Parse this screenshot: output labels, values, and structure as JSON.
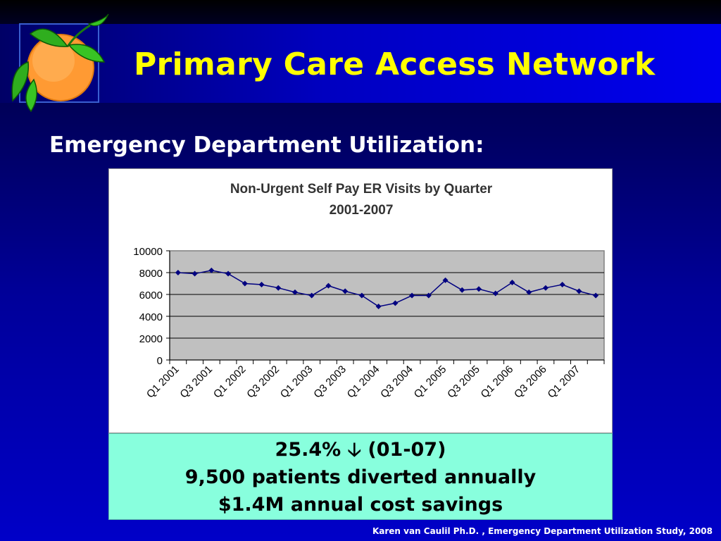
{
  "header": {
    "title": "Primary Care Access Network"
  },
  "section": {
    "subtitle": "Emergency Department Utilization:"
  },
  "chart_data": {
    "type": "line",
    "title": "Non-Urgent Self Pay ER Visits by Quarter",
    "subtitle": "2001-2007",
    "xlabel": "",
    "ylabel": "",
    "ylim": [
      0,
      10000
    ],
    "yticks": [
      "10000",
      "8000",
      "6000",
      "4000",
      "2000",
      "0"
    ],
    "grid": true,
    "categories": [
      "Q1 2001",
      "Q2 2001",
      "Q3 2001",
      "Q4 2001",
      "Q1 2002",
      "Q2 2002",
      "Q3 2002",
      "Q4 2002",
      "Q1 2003",
      "Q2 2003",
      "Q3 2003",
      "Q4 2003",
      "Q1 2004",
      "Q2 2004",
      "Q3 2004",
      "Q4 2004",
      "Q1 2005",
      "Q2 2005",
      "Q3 2005",
      "Q4 2005",
      "Q1 2006",
      "Q2 2006",
      "Q3 2006",
      "Q4 2006",
      "Q1 2007",
      "Q2 2007"
    ],
    "visible_tick_labels": [
      "Q1 2001",
      "Q3 2001",
      "Q1 2002",
      "Q3 2002",
      "Q1 2003",
      "Q3 2003",
      "Q1 2004",
      "Q3 2004",
      "Q1 2005",
      "Q3 2005",
      "Q1 2006",
      "Q3 2006",
      "Q1 2007"
    ],
    "series": [
      {
        "values": [
          8000,
          7900,
          8200,
          7900,
          7000,
          6900,
          6600,
          6200,
          5900,
          6800,
          6300,
          5900,
          4900,
          5200,
          5900,
          5900,
          7300,
          6400,
          6500,
          6100,
          7100,
          6200,
          6600,
          6900,
          6300,
          5900
        ],
        "color": "#000080"
      }
    ],
    "plot_background": "#c0c0c0"
  },
  "summary": {
    "line1_value": "25.4%",
    "line1_arrow": "🡣",
    "line1_period": "(01-07)",
    "line2": "9,500 patients diverted annually",
    "line3": "$1.4M annual cost savings"
  },
  "footer": {
    "citation": "Karen van Caulil Ph.D. , Emergency Department Utilization Study, 2008"
  },
  "colors": {
    "title": "#ffff00",
    "summary_bg": "#88ffdd"
  }
}
